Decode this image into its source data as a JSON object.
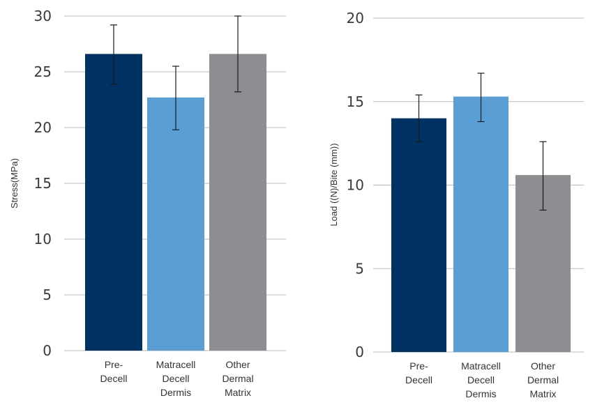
{
  "chart_data": [
    {
      "type": "bar",
      "ylabel": "Stress(MPa)",
      "ylim": [
        0,
        30
      ],
      "yticks": [
        0,
        5,
        10,
        15,
        20,
        25,
        30
      ],
      "grid": true,
      "categories": [
        [
          "Pre-",
          "Decell"
        ],
        [
          "Matracell",
          "Decell",
          "Dermis"
        ],
        [
          "Other",
          "Dermal",
          "Matrix"
        ]
      ],
      "values": [
        26.6,
        22.7,
        26.6
      ],
      "error_low": [
        23.9,
        19.8,
        23.2
      ],
      "error_high": [
        29.2,
        25.5,
        30.0
      ],
      "colors": [
        "#003263",
        "#599fd6",
        "#8d8e92"
      ]
    },
    {
      "type": "bar",
      "ylabel": "Load ((N)/Bite (mm))",
      "ylim": [
        0,
        20
      ],
      "yticks": [
        0,
        5,
        10,
        15,
        20
      ],
      "grid": true,
      "categories": [
        [
          "Pre-",
          "Decell"
        ],
        [
          "Matracell",
          "Decell",
          "Dermis"
        ],
        [
          "Other",
          "Dermal",
          "Matrix"
        ]
      ],
      "values": [
        14.0,
        15.3,
        10.6
      ],
      "error_low": [
        12.6,
        13.8,
        8.5
      ],
      "error_high": [
        15.4,
        16.7,
        12.6
      ],
      "colors": [
        "#003263",
        "#599fd6",
        "#8d8e92"
      ]
    }
  ]
}
